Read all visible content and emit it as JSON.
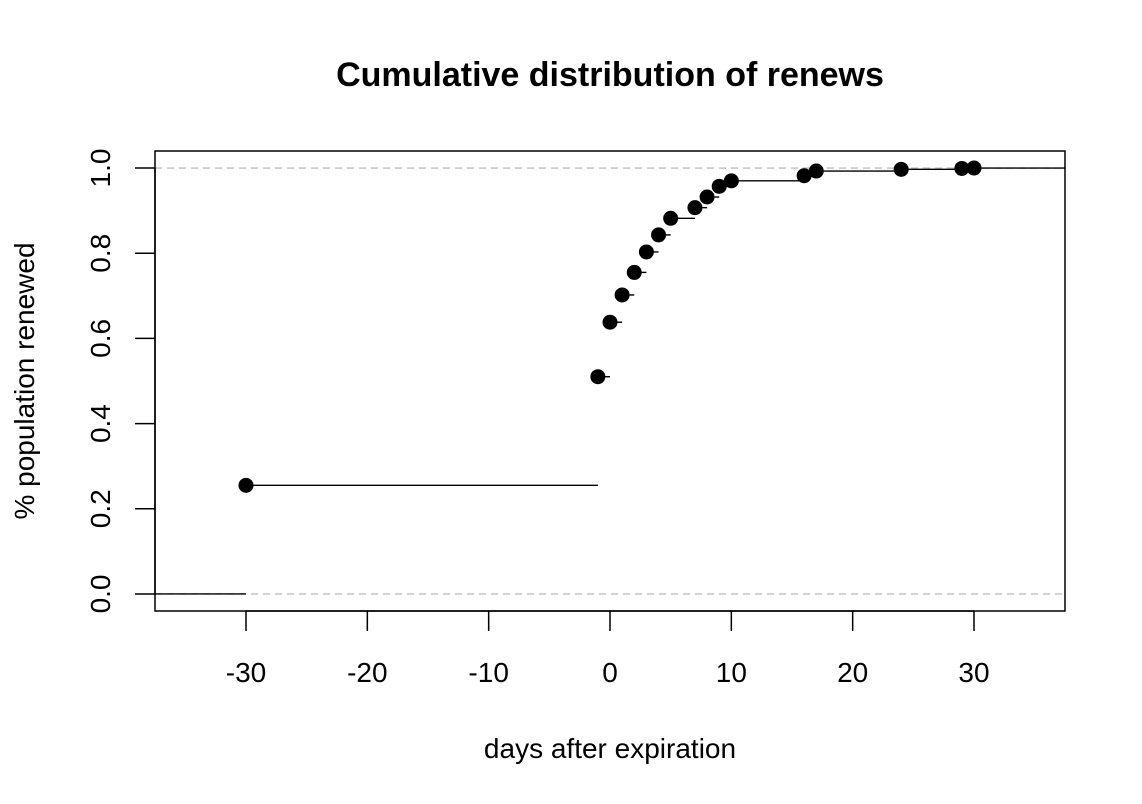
{
  "chart_data": {
    "type": "scatter",
    "subtype": "ecdf-step",
    "title": "Cumulative distribution of renews",
    "xlabel": "days after expiration",
    "ylabel": "% population renewed",
    "xlim": [
      -37.5,
      37.5
    ],
    "ylim": [
      -0.04,
      1.04
    ],
    "x_ticks": [
      -30,
      -20,
      -10,
      0,
      10,
      20,
      30
    ],
    "x_tick_labels": [
      "-30",
      "-20",
      "-10",
      "0",
      "10",
      "20",
      "30"
    ],
    "y_ticks": [
      0,
      0.2,
      0.4,
      0.6,
      0.8,
      1.0
    ],
    "y_tick_labels": [
      "0.0",
      "0.2",
      "0.4",
      "0.6",
      "0.8",
      "1.0"
    ],
    "reference_lines": [
      0,
      1
    ],
    "reference_line_color": "#bebebe",
    "grid": false,
    "legend": "none",
    "point_color": "#000000",
    "points": [
      {
        "x": -30,
        "y": 0.255
      },
      {
        "x": -1,
        "y": 0.51
      },
      {
        "x": 0,
        "y": 0.638
      },
      {
        "x": 1,
        "y": 0.702
      },
      {
        "x": 2,
        "y": 0.755
      },
      {
        "x": 3,
        "y": 0.803
      },
      {
        "x": 4,
        "y": 0.843
      },
      {
        "x": 5,
        "y": 0.882
      },
      {
        "x": 7,
        "y": 0.907
      },
      {
        "x": 8,
        "y": 0.932
      },
      {
        "x": 9,
        "y": 0.957
      },
      {
        "x": 10,
        "y": 0.97
      },
      {
        "x": 16,
        "y": 0.982
      },
      {
        "x": 17,
        "y": 0.993
      },
      {
        "x": 24,
        "y": 0.997
      },
      {
        "x": 29,
        "y": 0.999
      },
      {
        "x": 30,
        "y": 1.0
      }
    ]
  }
}
